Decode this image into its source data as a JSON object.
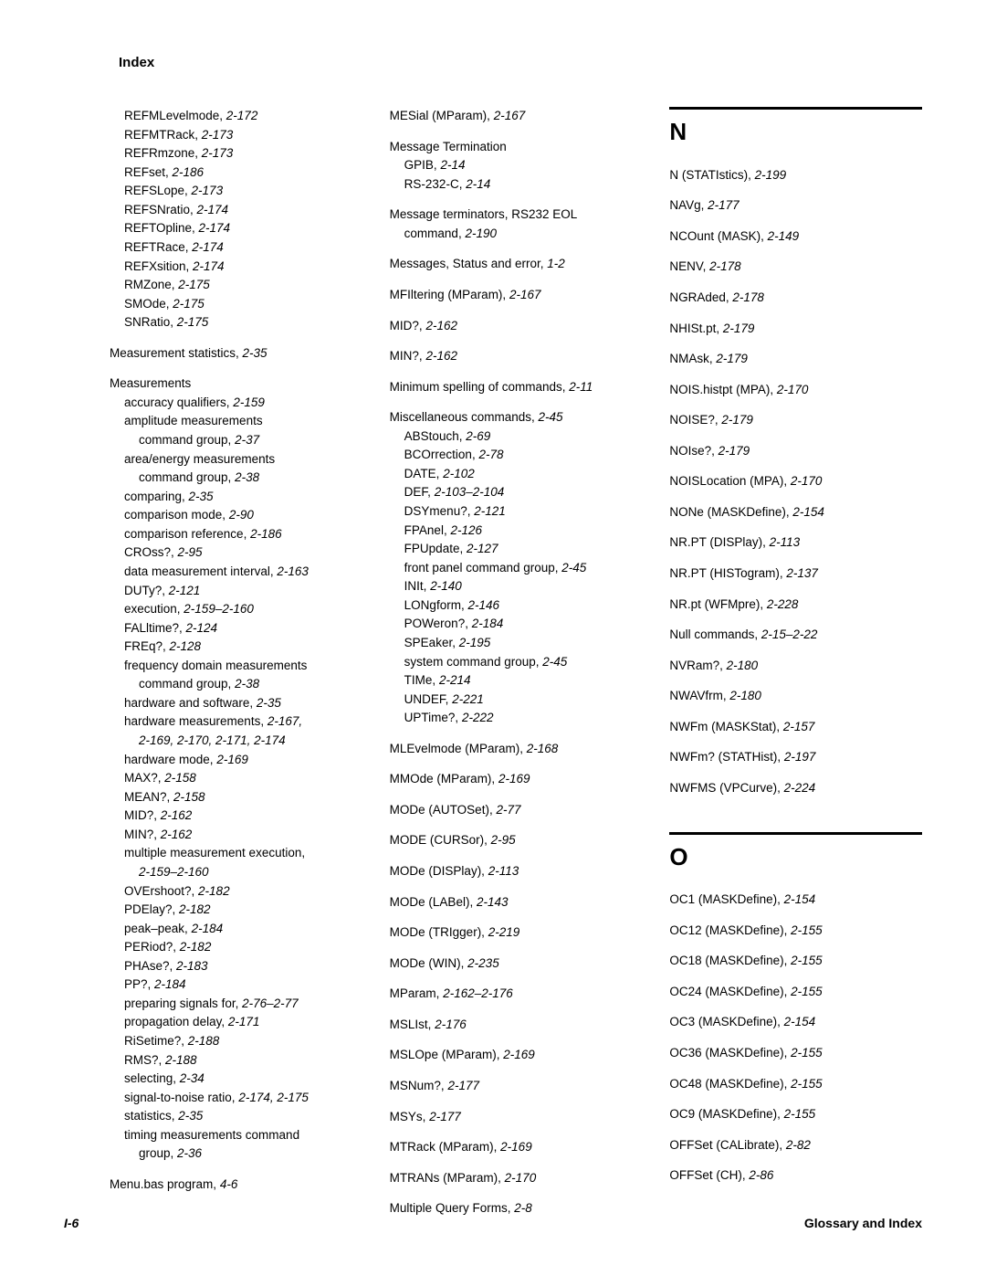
{
  "header": "Index",
  "footer": {
    "left": "I-6",
    "right": "Glossary and Index"
  },
  "letters": {
    "n": "N",
    "o": "O"
  },
  "col1": [
    {
      "t": "REFMLevelmode, ",
      "r": "2-172",
      "cls": "sub1"
    },
    {
      "t": "REFMTRack, ",
      "r": "2-173",
      "cls": "sub1"
    },
    {
      "t": "REFRmzone, ",
      "r": "2-173",
      "cls": "sub1"
    },
    {
      "t": "REFset, ",
      "r": "2-186",
      "cls": "sub1"
    },
    {
      "t": "REFSLope, ",
      "r": "2-173",
      "cls": "sub1"
    },
    {
      "t": "REFSNratio, ",
      "r": "2-174",
      "cls": "sub1"
    },
    {
      "t": "REFTOpline, ",
      "r": "2-174",
      "cls": "sub1"
    },
    {
      "t": "REFTRace, ",
      "r": "2-174",
      "cls": "sub1"
    },
    {
      "t": "REFXsition, ",
      "r": "2-174",
      "cls": "sub1"
    },
    {
      "t": "RMZone, ",
      "r": "2-175",
      "cls": "sub1"
    },
    {
      "t": "SMOde, ",
      "r": "2-175",
      "cls": "sub1"
    },
    {
      "t": "SNRatio, ",
      "r": "2-175",
      "cls": "sub1"
    },
    {
      "t": "Measurement statistics, ",
      "r": "2-35",
      "cls": "section-break"
    },
    {
      "t": "Measurements",
      "r": "",
      "cls": "section-break"
    },
    {
      "t": "accuracy qualifiers, ",
      "r": "2-159",
      "cls": "sub1"
    },
    {
      "t": "amplitude measurements",
      "r": "",
      "cls": "sub1"
    },
    {
      "t": "command group, ",
      "r": "2-37",
      "cls": "sub2"
    },
    {
      "t": "area/energy measurements",
      "r": "",
      "cls": "sub1"
    },
    {
      "t": "command group, ",
      "r": "2-38",
      "cls": "sub2"
    },
    {
      "t": "comparing, ",
      "r": "2-35",
      "cls": "sub1"
    },
    {
      "t": "comparison mode, ",
      "r": "2-90",
      "cls": "sub1"
    },
    {
      "t": "comparison reference, ",
      "r": "2-186",
      "cls": "sub1"
    },
    {
      "t": "CROss?, ",
      "r": "2-95",
      "cls": "sub1"
    },
    {
      "t": "data measurement interval, ",
      "r": "2-163",
      "cls": "sub1"
    },
    {
      "t": "DUTy?, ",
      "r": "2-121",
      "cls": "sub1"
    },
    {
      "t": "execution, ",
      "r": "2-159–2-160",
      "cls": "sub1"
    },
    {
      "t": "FALltime?, ",
      "r": "2-124",
      "cls": "sub1"
    },
    {
      "t": "FREq?, ",
      "r": "2-128",
      "cls": "sub1"
    },
    {
      "t": "frequency domain measurements",
      "r": "",
      "cls": "sub1"
    },
    {
      "t": "command group, ",
      "r": "2-38",
      "cls": "sub2"
    },
    {
      "t": "hardware and software, ",
      "r": "2-35",
      "cls": "sub1"
    },
    {
      "t": "hardware measurements, ",
      "r": "2-167,",
      "cls": "sub1"
    },
    {
      "t": "",
      "r": "2-169, 2-170, 2-171, 2-174",
      "cls": "sub2"
    },
    {
      "t": "hardware mode, ",
      "r": "2-169",
      "cls": "sub1"
    },
    {
      "t": "MAX?, ",
      "r": "2-158",
      "cls": "sub1"
    },
    {
      "t": "MEAN?, ",
      "r": "2-158",
      "cls": "sub1"
    },
    {
      "t": "MID?, ",
      "r": "2-162",
      "cls": "sub1"
    },
    {
      "t": "MIN?, ",
      "r": "2-162",
      "cls": "sub1"
    },
    {
      "t": "multiple measurement execution,",
      "r": "",
      "cls": "sub1"
    },
    {
      "t": "",
      "r": "2-159–2-160",
      "cls": "sub2"
    },
    {
      "t": "OVErshoot?, ",
      "r": "2-182",
      "cls": "sub1"
    },
    {
      "t": "PDElay?, ",
      "r": "2-182",
      "cls": "sub1"
    },
    {
      "t": "peak–peak, ",
      "r": "2-184",
      "cls": "sub1"
    },
    {
      "t": "PERiod?, ",
      "r": "2-182",
      "cls": "sub1"
    },
    {
      "t": "PHAse?, ",
      "r": "2-183",
      "cls": "sub1"
    },
    {
      "t": "PP?, ",
      "r": "2-184",
      "cls": "sub1"
    },
    {
      "t": "preparing signals for, ",
      "r": "2-76–2-77",
      "cls": "sub1"
    },
    {
      "t": "propagation delay, ",
      "r": "2-171",
      "cls": "sub1"
    },
    {
      "t": "RiSetime?, ",
      "r": "2-188",
      "cls": "sub1"
    },
    {
      "t": "RMS?, ",
      "r": "2-188",
      "cls": "sub1"
    },
    {
      "t": "selecting, ",
      "r": "2-34",
      "cls": "sub1"
    },
    {
      "t": "signal-to-noise ratio, ",
      "r": "2-174, 2-175",
      "cls": "sub1"
    },
    {
      "t": "statistics, ",
      "r": "2-35",
      "cls": "sub1"
    },
    {
      "t": "timing measurements command",
      "r": "",
      "cls": "sub1"
    },
    {
      "t": "group, ",
      "r": "2-36",
      "cls": "sub2"
    },
    {
      "t": "Menu.bas program, ",
      "r": "4-6",
      "cls": "section-break"
    }
  ],
  "col2": [
    {
      "t": "MESial (MParam), ",
      "r": "2-167",
      "cls": ""
    },
    {
      "t": "Message Termination",
      "r": "",
      "cls": "section-break"
    },
    {
      "t": "GPIB, ",
      "r": "2-14",
      "cls": "sub1"
    },
    {
      "t": "RS-232-C, ",
      "r": "2-14",
      "cls": "sub1"
    },
    {
      "t": "Message terminators, RS232 EOL",
      "r": "",
      "cls": "section-break"
    },
    {
      "t": "command, ",
      "r": "2-190",
      "cls": "sub1"
    },
    {
      "t": "Messages, Status and error, ",
      "r": "1-2",
      "cls": "section-break"
    },
    {
      "t": "MFIltering (MParam), ",
      "r": "2-167",
      "cls": "section-break"
    },
    {
      "t": "MID?, ",
      "r": "2-162",
      "cls": "section-break"
    },
    {
      "t": "MIN?, ",
      "r": "2-162",
      "cls": "section-break"
    },
    {
      "t": "Minimum spelling of commands, ",
      "r": "2-11",
      "cls": "section-break"
    },
    {
      "t": "Miscellaneous commands, ",
      "r": "2-45",
      "cls": "section-break"
    },
    {
      "t": "ABStouch, ",
      "r": "2-69",
      "cls": "sub1"
    },
    {
      "t": "BCOrrection, ",
      "r": "2-78",
      "cls": "sub1"
    },
    {
      "t": "DATE, ",
      "r": "2-102",
      "cls": "sub1"
    },
    {
      "t": "DEF, ",
      "r": "2-103–2-104",
      "cls": "sub1"
    },
    {
      "t": "DSYmenu?, ",
      "r": "2-121",
      "cls": "sub1"
    },
    {
      "t": "FPAnel, ",
      "r": "2-126",
      "cls": "sub1"
    },
    {
      "t": "FPUpdate, ",
      "r": "2-127",
      "cls": "sub1"
    },
    {
      "t": "front panel command group, ",
      "r": "2-45",
      "cls": "sub1"
    },
    {
      "t": "INIt, ",
      "r": "2-140",
      "cls": "sub1"
    },
    {
      "t": "LONgform, ",
      "r": "2-146",
      "cls": "sub1"
    },
    {
      "t": "POWeron?, ",
      "r": "2-184",
      "cls": "sub1"
    },
    {
      "t": "SPEaker, ",
      "r": "2-195",
      "cls": "sub1"
    },
    {
      "t": "system command group, ",
      "r": "2-45",
      "cls": "sub1"
    },
    {
      "t": "TIMe, ",
      "r": "2-214",
      "cls": "sub1"
    },
    {
      "t": "UNDEF, ",
      "r": "2-221",
      "cls": "sub1"
    },
    {
      "t": "UPTime?, ",
      "r": "2-222",
      "cls": "sub1"
    },
    {
      "t": "MLEvelmode (MParam), ",
      "r": "2-168",
      "cls": "section-break"
    },
    {
      "t": "MMOde (MParam), ",
      "r": "2-169",
      "cls": "section-break"
    },
    {
      "t": "MODe (AUTOSet), ",
      "r": "2-77",
      "cls": "section-break"
    },
    {
      "t": "MODE (CURSor), ",
      "r": "2-95",
      "cls": "section-break"
    },
    {
      "t": "MODe (DISPlay), ",
      "r": "2-113",
      "cls": "section-break"
    },
    {
      "t": "MODe (LABel), ",
      "r": "2-143",
      "cls": "section-break"
    },
    {
      "t": "MODe (TRIgger), ",
      "r": "2-219",
      "cls": "section-break"
    },
    {
      "t": "MODe (WIN), ",
      "r": "2-235",
      "cls": "section-break"
    },
    {
      "t": "MParam, ",
      "r": "2-162–2-176",
      "cls": "section-break"
    },
    {
      "t": "MSLIst, ",
      "r": "2-176",
      "cls": "section-break"
    },
    {
      "t": "MSLOpe (MParam), ",
      "r": "2-169",
      "cls": "section-break"
    },
    {
      "t": "MSNum?, ",
      "r": "2-177",
      "cls": "section-break"
    },
    {
      "t": "MSYs, ",
      "r": "2-177",
      "cls": "section-break"
    },
    {
      "t": "MTRack (MParam), ",
      "r": "2-169",
      "cls": "section-break"
    },
    {
      "t": "MTRANs (MParam), ",
      "r": "2-170",
      "cls": "section-break"
    },
    {
      "t": "Multiple Query Forms, ",
      "r": "2-8",
      "cls": "section-break"
    }
  ],
  "col3n": [
    {
      "t": "N (STATIstics), ",
      "r": "2-199",
      "cls": ""
    },
    {
      "t": "NAVg, ",
      "r": "2-177",
      "cls": "section-break"
    },
    {
      "t": "NCOunt (MASK), ",
      "r": "2-149",
      "cls": "section-break"
    },
    {
      "t": "NENV, ",
      "r": "2-178",
      "cls": "section-break"
    },
    {
      "t": "NGRAded, ",
      "r": "2-178",
      "cls": "section-break"
    },
    {
      "t": "NHISt.pt, ",
      "r": "2-179",
      "cls": "section-break"
    },
    {
      "t": "NMAsk, ",
      "r": "2-179",
      "cls": "section-break"
    },
    {
      "t": "NOIS.histpt (MPA), ",
      "r": "2-170",
      "cls": "section-break"
    },
    {
      "t": "NOISE?, ",
      "r": "2-179",
      "cls": "section-break"
    },
    {
      "t": "NOIse?, ",
      "r": "2-179",
      "cls": "section-break"
    },
    {
      "t": "NOISLocation (MPA), ",
      "r": "2-170",
      "cls": "section-break"
    },
    {
      "t": "NONe (MASKDefine), ",
      "r": "2-154",
      "cls": "section-break"
    },
    {
      "t": "NR.PT (DISPlay), ",
      "r": "2-113",
      "cls": "section-break"
    },
    {
      "t": "NR.PT (HISTogram), ",
      "r": "2-137",
      "cls": "section-break"
    },
    {
      "t": "NR.pt (WFMpre), ",
      "r": "2-228",
      "cls": "section-break"
    },
    {
      "t": "Null commands, ",
      "r": "2-15–2-22",
      "cls": "section-break"
    },
    {
      "t": "NVRam?, ",
      "r": "2-180",
      "cls": "section-break"
    },
    {
      "t": "NWAVfrm, ",
      "r": "2-180",
      "cls": "section-break"
    },
    {
      "t": "NWFm (MASKStat), ",
      "r": "2-157",
      "cls": "section-break"
    },
    {
      "t": "NWFm? (STATHist), ",
      "r": "2-197",
      "cls": "section-break"
    },
    {
      "t": "NWFMS (VPCurve), ",
      "r": "2-224",
      "cls": "section-break"
    }
  ],
  "col3o": [
    {
      "t": "OC1 (MASKDefine), ",
      "r": "2-154",
      "cls": ""
    },
    {
      "t": "OC12 (MASKDefine), ",
      "r": "2-155",
      "cls": "section-break"
    },
    {
      "t": "OC18 (MASKDefine), ",
      "r": "2-155",
      "cls": "section-break"
    },
    {
      "t": "OC24 (MASKDefine), ",
      "r": "2-155",
      "cls": "section-break"
    },
    {
      "t": "OC3 (MASKDefine), ",
      "r": "2-154",
      "cls": "section-break"
    },
    {
      "t": "OC36 (MASKDefine), ",
      "r": "2-155",
      "cls": "section-break"
    },
    {
      "t": "OC48 (MASKDefine), ",
      "r": "2-155",
      "cls": "section-break"
    },
    {
      "t": "OC9 (MASKDefine), ",
      "r": "2-155",
      "cls": "section-break"
    },
    {
      "t": "OFFSet (CALibrate), ",
      "r": "2-82",
      "cls": "section-break"
    },
    {
      "t": "OFFSet (CH), ",
      "r": "2-86",
      "cls": "section-break"
    }
  ]
}
